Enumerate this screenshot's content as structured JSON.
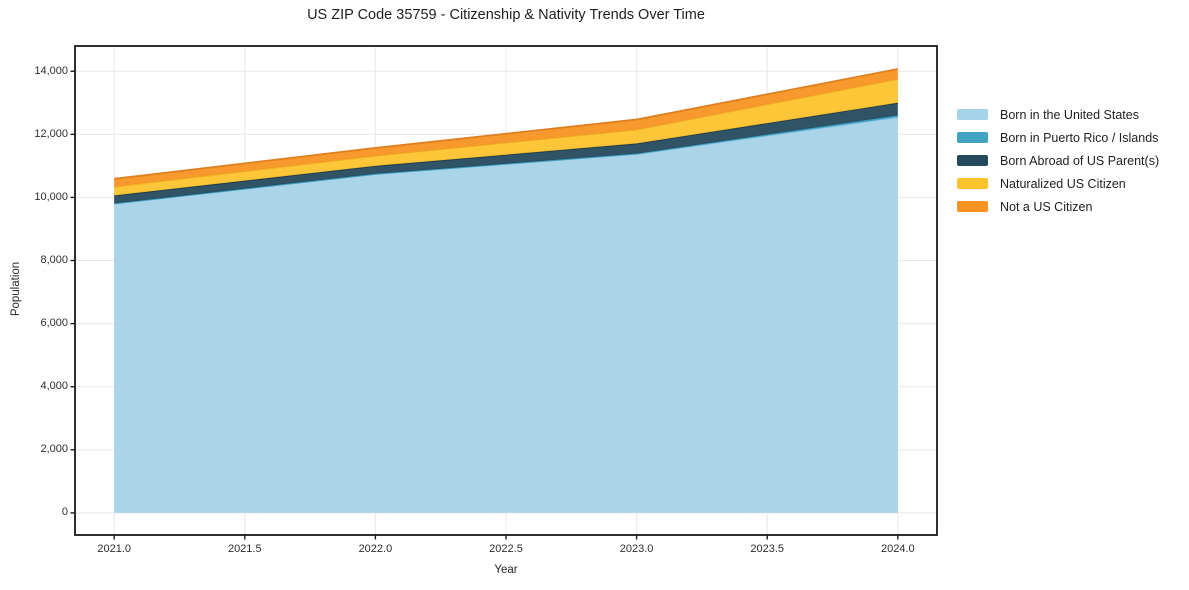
{
  "title": "US ZIP Code 35759 - Citizenship & Nativity Trends Over Time",
  "chart_data": {
    "type": "area",
    "stacked": true,
    "title": "US ZIP Code 35759 - Citizenship & Nativity Trends Over Time",
    "xlabel": "Year",
    "ylabel": "Population",
    "grid": true,
    "legend_position": "right-outside",
    "x": [
      2021,
      2022,
      2023,
      2024
    ],
    "series": [
      {
        "name": "Born in the United States",
        "color": "#a5d3e8",
        "edge_color": "#93c9e2",
        "values": [
          9800,
          10740,
          11370,
          12540
        ]
      },
      {
        "name": "Born in Puerto Rico / Islands",
        "color": "#42a2c2",
        "edge_color": "#3a9ab9",
        "values": [
          10,
          10,
          20,
          60
        ]
      },
      {
        "name": "Born Abroad of US Parent(s)",
        "color": "#254a5e",
        "edge_color": "#1e3c50",
        "values": [
          250,
          250,
          320,
          400
        ]
      },
      {
        "name": "Naturalized US Citizen",
        "color": "#fcc32d",
        "edge_color": "#ecb32a",
        "values": [
          280,
          320,
          440,
          750
        ]
      },
      {
        "name": "Not a US Citizen",
        "color": "#f79322",
        "edge_color": "#e07f1f",
        "values": [
          250,
          250,
          320,
          320
        ]
      }
    ],
    "x_ticks": [
      "2021.0",
      "2021.5",
      "2022.0",
      "2022.5",
      "2023.0",
      "2023.5",
      "2024.0"
    ],
    "x_tick_values": [
      2021,
      2021.5,
      2022,
      2022.5,
      2023,
      2023.5,
      2024
    ],
    "y_ticks": [
      "0",
      "2,000",
      "4,000",
      "6,000",
      "8,000",
      "10,000",
      "12,000",
      "14,000"
    ],
    "y_tick_values": [
      0,
      2000,
      4000,
      6000,
      8000,
      10000,
      12000,
      14000
    ],
    "xlim": [
      2020.85,
      2024.15
    ],
    "ylim": [
      -700,
      14800
    ],
    "grid_color": "#e8e8e8",
    "spine_color": "#1a1a1a"
  }
}
